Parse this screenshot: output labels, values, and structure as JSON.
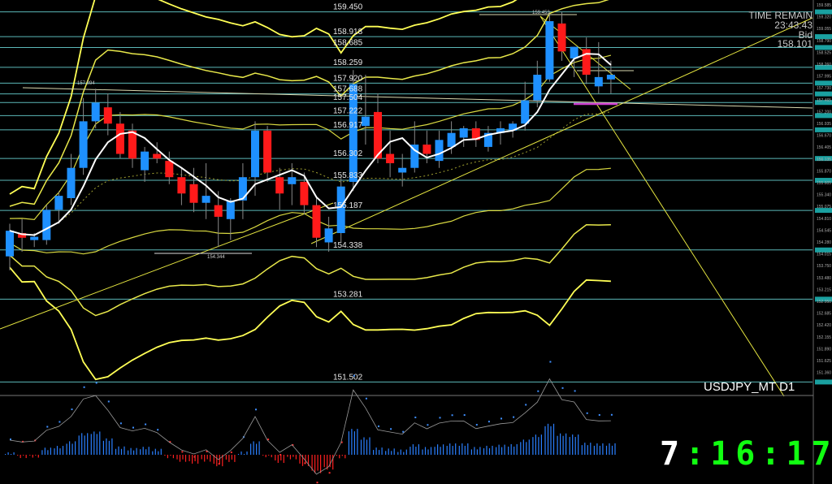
{
  "info": {
    "time_remain_label": "TIME REMAIN",
    "time_remain_value": "23:43:43",
    "bid_label": "Bid",
    "bid_value": "158.101"
  },
  "symbol_label": "USDJPY_MT D1",
  "clock": {
    "h": "7",
    "sep1": ":",
    "m": "16",
    "sep2": ":",
    "s": "17"
  },
  "colors": {
    "background": "#000000",
    "bull": "#1e90ff",
    "bear": "#ff1a1a",
    "band": "#ffff44",
    "level": "#66cccc",
    "ma": "#ffffff"
  },
  "chart_data": {
    "type": "candlestick",
    "symbol": "USDJPY_MT",
    "timeframe": "D1",
    "ylim": [
      151.3,
      159.6
    ],
    "level_labels": [
      "159.450",
      "158.918",
      "158.685",
      "158.259",
      "157.920",
      "157.688",
      "157.504",
      "157.222",
      "156.917",
      "156.302",
      "155.833",
      "155.187",
      "154.338",
      "153.281",
      "151.502"
    ],
    "levels": [
      159.45,
      158.918,
      158.685,
      158.259,
      157.92,
      157.688,
      157.504,
      157.222,
      156.917,
      156.302,
      155.833,
      155.187,
      154.338,
      153.281,
      151.502
    ],
    "high_marker": "159.453",
    "low_marker": "154.344",
    "left_marker": "157.894",
    "axis_ticks": [
      "159.585",
      "159.320",
      "159.055",
      "158.790",
      "158.525",
      "158.260",
      "157.995",
      "157.730",
      "157.465",
      "157.200",
      "156.935",
      "156.670",
      "156.405",
      "156.135",
      "155.870",
      "155.605",
      "155.340",
      "155.075",
      "154.810",
      "154.545",
      "154.280",
      "154.015",
      "153.750",
      "153.480",
      "153.215",
      "152.950",
      "152.685",
      "152.420",
      "152.155",
      "151.890",
      "151.625",
      "151.360"
    ],
    "candles": [
      {
        "o": 154.2,
        "h": 154.9,
        "l": 153.9,
        "c": 154.75
      },
      {
        "o": 154.7,
        "h": 155.0,
        "l": 154.3,
        "c": 154.6
      },
      {
        "o": 154.55,
        "h": 154.7,
        "l": 154.4,
        "c": 154.62
      },
      {
        "o": 154.55,
        "h": 155.3,
        "l": 154.45,
        "c": 155.2
      },
      {
        "o": 155.2,
        "h": 155.6,
        "l": 154.9,
        "c": 155.5
      },
      {
        "o": 155.45,
        "h": 156.4,
        "l": 155.3,
        "c": 156.1
      },
      {
        "o": 156.1,
        "h": 157.6,
        "l": 155.95,
        "c": 157.1
      },
      {
        "o": 157.1,
        "h": 157.8,
        "l": 156.95,
        "c": 157.5
      },
      {
        "o": 157.4,
        "h": 157.7,
        "l": 156.8,
        "c": 157.05
      },
      {
        "o": 157.05,
        "h": 157.3,
        "l": 156.3,
        "c": 156.4
      },
      {
        "o": 156.9,
        "h": 157.05,
        "l": 156.1,
        "c": 156.3
      },
      {
        "o": 156.05,
        "h": 156.55,
        "l": 155.8,
        "c": 156.45
      },
      {
        "o": 156.4,
        "h": 156.65,
        "l": 156.2,
        "c": 156.3
      },
      {
        "o": 156.25,
        "h": 156.45,
        "l": 155.75,
        "c": 155.9
      },
      {
        "o": 155.9,
        "h": 156.1,
        "l": 155.3,
        "c": 155.55
      },
      {
        "o": 155.75,
        "h": 156.1,
        "l": 155.15,
        "c": 155.35
      },
      {
        "o": 155.35,
        "h": 156.2,
        "l": 155.0,
        "c": 155.5
      },
      {
        "o": 155.3,
        "h": 155.6,
        "l": 154.4,
        "c": 155.05
      },
      {
        "o": 155.0,
        "h": 155.45,
        "l": 154.55,
        "c": 155.4
      },
      {
        "o": 155.4,
        "h": 156.2,
        "l": 155.0,
        "c": 155.9
      },
      {
        "o": 155.9,
        "h": 157.1,
        "l": 155.5,
        "c": 156.9
      },
      {
        "o": 156.9,
        "h": 157.0,
        "l": 155.8,
        "c": 156.0
      },
      {
        "o": 155.9,
        "h": 156.1,
        "l": 155.2,
        "c": 155.55
      },
      {
        "o": 155.75,
        "h": 156.2,
        "l": 155.3,
        "c": 155.9
      },
      {
        "o": 155.8,
        "h": 156.0,
        "l": 155.1,
        "c": 155.3
      },
      {
        "o": 155.3,
        "h": 155.5,
        "l": 154.4,
        "c": 154.6
      },
      {
        "o": 154.5,
        "h": 155.05,
        "l": 154.3,
        "c": 154.8
      },
      {
        "o": 154.7,
        "h": 155.9,
        "l": 154.5,
        "c": 155.7
      },
      {
        "o": 155.8,
        "h": 158.2,
        "l": 155.6,
        "c": 157.9
      },
      {
        "o": 157.0,
        "h": 158.1,
        "l": 156.6,
        "c": 157.2
      },
      {
        "o": 157.3,
        "h": 157.7,
        "l": 156.2,
        "c": 156.3
      },
      {
        "o": 156.4,
        "h": 156.9,
        "l": 155.9,
        "c": 156.2
      },
      {
        "o": 156.0,
        "h": 156.4,
        "l": 155.7,
        "c": 156.1
      },
      {
        "o": 156.1,
        "h": 157.1,
        "l": 156.0,
        "c": 156.6
      },
      {
        "o": 156.6,
        "h": 156.9,
        "l": 156.2,
        "c": 156.4
      },
      {
        "o": 156.25,
        "h": 156.9,
        "l": 156.1,
        "c": 156.7
      },
      {
        "o": 156.55,
        "h": 157.1,
        "l": 156.4,
        "c": 156.85
      },
      {
        "o": 156.75,
        "h": 157.0,
        "l": 156.55,
        "c": 156.95
      },
      {
        "o": 156.95,
        "h": 157.1,
        "l": 156.55,
        "c": 156.7
      },
      {
        "o": 156.55,
        "h": 157.0,
        "l": 156.45,
        "c": 156.85
      },
      {
        "o": 156.85,
        "h": 157.1,
        "l": 156.6,
        "c": 156.95
      },
      {
        "o": 156.9,
        "h": 157.1,
        "l": 156.75,
        "c": 157.05
      },
      {
        "o": 157.05,
        "h": 157.95,
        "l": 156.9,
        "c": 157.55
      },
      {
        "o": 157.55,
        "h": 158.4,
        "l": 157.4,
        "c": 158.1
      },
      {
        "o": 158.0,
        "h": 159.4,
        "l": 157.95,
        "c": 159.25
      },
      {
        "o": 159.2,
        "h": 159.45,
        "l": 158.4,
        "c": 158.6
      },
      {
        "o": 158.45,
        "h": 158.7,
        "l": 158.05,
        "c": 158.7
      },
      {
        "o": 158.65,
        "h": 158.9,
        "l": 157.9,
        "c": 158.1
      },
      {
        "o": 157.85,
        "h": 158.8,
        "l": 157.7,
        "c": 158.05
      },
      {
        "o": 158.0,
        "h": 158.4,
        "l": 157.7,
        "c": 158.1
      }
    ]
  }
}
